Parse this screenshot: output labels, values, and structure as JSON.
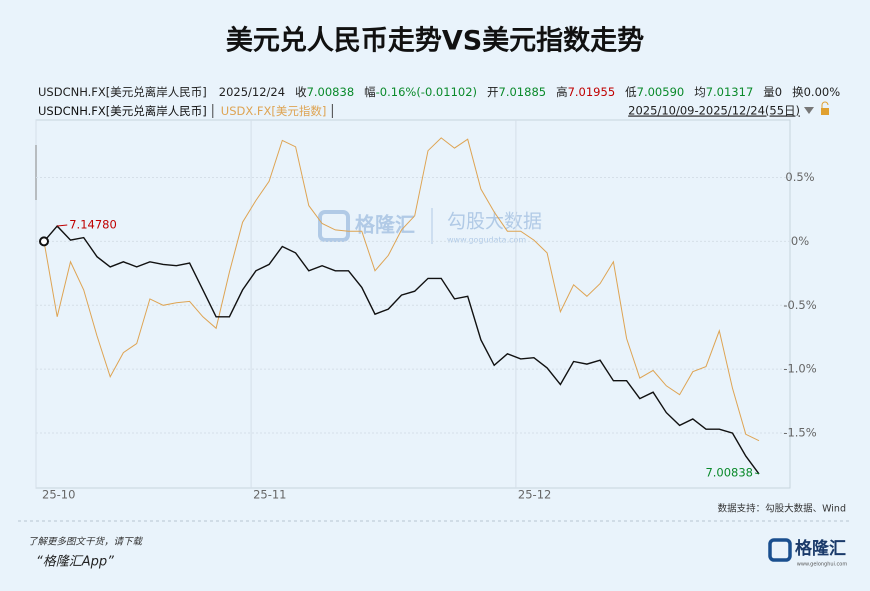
{
  "header": {
    "title": "美元兑人民币走势VS美元指数走势",
    "info": [
      {
        "text": "USDCNH.FX[美元兑离岸人民币]"
      },
      {
        "text": "2025/12/24"
      },
      {
        "label": "收",
        "value": "7.00838",
        "color": "#0a8a2a"
      },
      {
        "label": "幅",
        "value": "-0.16%(-0.01102)",
        "color": "#0a8a2a"
      },
      {
        "label": "开",
        "value": "7.01885",
        "color": "#0a8a2a"
      },
      {
        "label": "高",
        "value": "7.01955",
        "color": "#c00000"
      },
      {
        "label": "低",
        "value": "7.00590",
        "color": "#0a8a2a"
      },
      {
        "label": "均",
        "value": "7.01317",
        "color": "#0a8a2a"
      },
      {
        "label": "量",
        "value": "0",
        "color": "#222222"
      },
      {
        "label": "换",
        "value": "0.00%",
        "color": "#222222"
      }
    ],
    "range": "2025/10/09-2025/12/24(55日)"
  },
  "chart_data": {
    "type": "line",
    "categories": [
      "25-10",
      null,
      null,
      null,
      null,
      null,
      null,
      null,
      null,
      null,
      null,
      null,
      null,
      null,
      null,
      null,
      null,
      "25-11",
      null,
      null,
      null,
      null,
      null,
      null,
      null,
      null,
      null,
      null,
      null,
      null,
      null,
      null,
      null,
      null,
      null,
      null,
      null,
      "25-12",
      null,
      null,
      null,
      null,
      null,
      null,
      null,
      null,
      null,
      null,
      null,
      null,
      null,
      null,
      null,
      null,
      null
    ],
    "series": [
      {
        "name": "USDCNH.FX[美元兑离岸人民币]",
        "color": "#111111",
        "values": [
          0,
          0.12,
          0.01,
          0.03,
          -0.12,
          -0.2,
          -0.16,
          -0.2,
          -0.16,
          -0.18,
          -0.19,
          -0.17,
          -0.38,
          -0.59,
          -0.59,
          -0.38,
          -0.23,
          -0.18,
          -0.04,
          -0.09,
          -0.23,
          -0.19,
          -0.23,
          -0.23,
          -0.36,
          -0.57,
          -0.53,
          -0.42,
          -0.39,
          -0.29,
          -0.29,
          -0.45,
          -0.43,
          -0.77,
          -0.97,
          -0.88,
          -0.92,
          -0.91,
          -0.99,
          -1.12,
          -0.94,
          -0.96,
          -0.93,
          -1.09,
          -1.09,
          -1.23,
          -1.18,
          -1.34,
          -1.44,
          -1.39,
          -1.47,
          -1.47,
          -1.5,
          -1.68,
          -1.82
        ],
        "value_labels": [
          null,
          "7.14780",
          null,
          null,
          null,
          null,
          null,
          null,
          null,
          null,
          null,
          null,
          null,
          null,
          null,
          null,
          null,
          null,
          null,
          null,
          null,
          null,
          null,
          null,
          null,
          null,
          null,
          null,
          null,
          null,
          null,
          null,
          null,
          null,
          null,
          null,
          null,
          null,
          null,
          null,
          null,
          null,
          null,
          null,
          null,
          null,
          null,
          null,
          null,
          null,
          null,
          null,
          null,
          null,
          "7.00838"
        ],
        "value_label_colors": [
          "#c00000",
          "#0a8a2a"
        ]
      },
      {
        "name": "USDX.FX[美元指数]",
        "color": "#dea453",
        "values": [
          0,
          -0.59,
          -0.16,
          -0.38,
          -0.74,
          -1.06,
          -0.87,
          -0.8,
          -0.45,
          -0.5,
          -0.48,
          -0.47,
          -0.59,
          -0.68,
          -0.24,
          0.15,
          0.32,
          0.47,
          0.79,
          0.74,
          0.28,
          0.14,
          0.09,
          0.08,
          0.08,
          -0.23,
          -0.11,
          0.09,
          0.2,
          0.71,
          0.81,
          0.73,
          0.8,
          0.41,
          0.23,
          0.08,
          0.08,
          0.01,
          -0.09,
          -0.55,
          -0.34,
          -0.43,
          -0.33,
          -0.16,
          -0.76,
          -1.07,
          -1.01,
          -1.13,
          -1.2,
          -1.02,
          -0.98,
          -0.7,
          -1.15,
          -1.51,
          -1.56
        ]
      }
    ],
    "ylim": [
      -1.93,
      0.95
    ],
    "yticks": [
      {
        "value": 0.5,
        "label": "0.5%"
      },
      {
        "value": 0,
        "label": "0%"
      },
      {
        "value": -0.5,
        "label": "-0.5%"
      },
      {
        "value": -1,
        "label": "-1.0%"
      },
      {
        "value": -1.5,
        "label": "-1.5%"
      }
    ],
    "grid": true
  },
  "watermark": {
    "brand": "格隆汇",
    "site": "勾股大数据",
    "url": "www.gogudata.com"
  },
  "source": "数据支持：勾股大数据、Wind",
  "footer": {
    "note": "了解更多图文干货，请下载",
    "app": "“格隆汇App”",
    "logo": "格隆汇",
    "logo_url": "www.gelonghui.com"
  }
}
